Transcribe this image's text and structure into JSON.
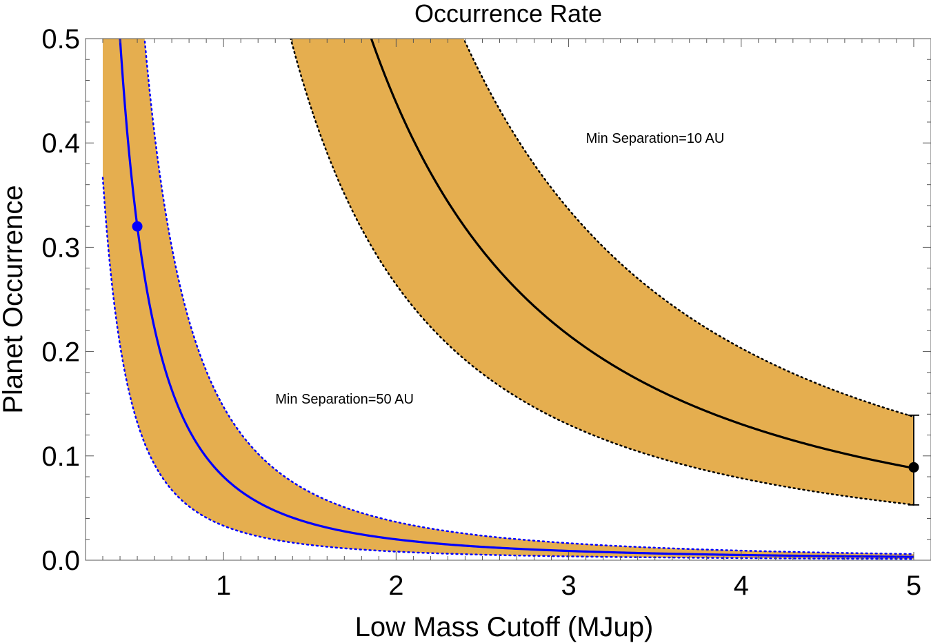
{
  "chart_data": {
    "type": "line",
    "title": "Occurrence Rate",
    "xlabel": "Low Mass Cutoff (MJup)",
    "ylabel": "Planet Occurrence",
    "xlim": [
      0.2,
      5.1
    ],
    "ylim": [
      0.0,
      0.5
    ],
    "xticks": [
      1,
      2,
      3,
      4,
      5
    ],
    "xtick_labels": [
      "1",
      "2",
      "3",
      "4",
      "5"
    ],
    "yticks": [
      0.0,
      0.1,
      0.2,
      0.3,
      0.4,
      0.5
    ],
    "ytick_labels": [
      "0.0",
      "0.1",
      "0.2",
      "0.3",
      "0.4",
      "0.5"
    ],
    "band_color": "#e5ae4f",
    "series": [
      {
        "name": "Min Separation=50 AU",
        "label": "Min Separation=50 AU",
        "color": "#0000ff",
        "central_coeff": 0.08,
        "band_lower_coeff": 0.033,
        "band_upper_coeff": 0.147,
        "power": 2.0,
        "anchor_point": [
          0.5,
          0.32
        ],
        "label_anchor": [
          1.3,
          0.15
        ]
      },
      {
        "name": "Min Separation=10 AU",
        "label": "Min Separation=10 AU",
        "color": "#000000",
        "central_coeff": 1.476,
        "band_lower_coeff": 0.889,
        "band_upper_coeff": 2.3,
        "power": 1.75,
        "anchor_point": [
          5.0,
          0.089
        ],
        "errorbar": [
          0.053,
          0.139
        ],
        "label_anchor": [
          3.1,
          0.4
        ]
      }
    ]
  }
}
